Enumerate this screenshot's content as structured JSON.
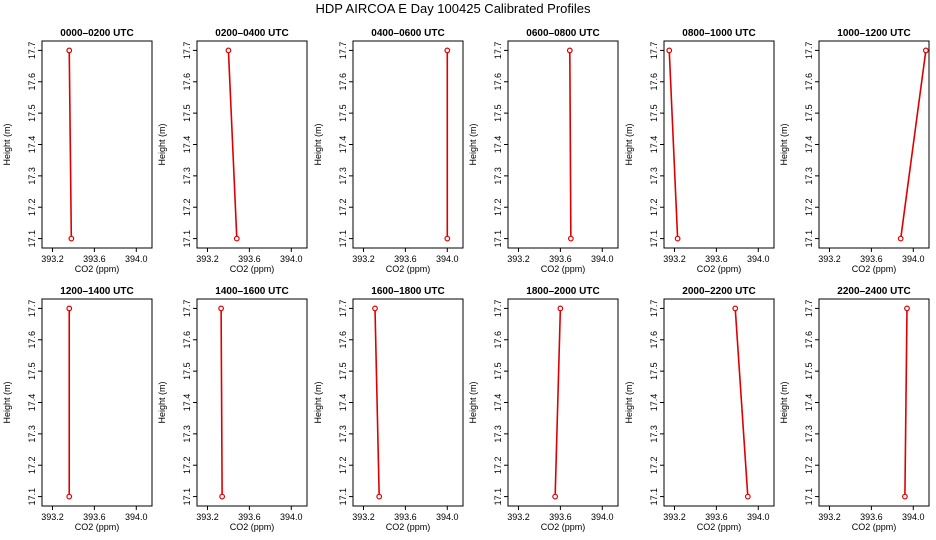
{
  "title": "HDP AIRCOA E  Day 100425  Calibrated Profiles",
  "chart_data": [
    {
      "type": "line",
      "title": "0000–0200 UTC",
      "xlabel": "CO2 (ppm)",
      "ylabel": "Height (m)",
      "xlim": [
        393.1,
        394.15
      ],
      "ylim": [
        17.07,
        17.73
      ],
      "xticks": [
        "393.2",
        "393.6",
        "394.0"
      ],
      "yticks": [
        "17.1",
        "17.2",
        "17.3",
        "17.4",
        "17.5",
        "17.6",
        "17.7"
      ],
      "color": "#dd0000",
      "points": [
        {
          "x": 393.36,
          "y": 17.7
        },
        {
          "x": 393.38,
          "y": 17.1
        }
      ]
    },
    {
      "type": "line",
      "title": "0200–0400 UTC",
      "xlabel": "CO2 (ppm)",
      "ylabel": "Height (m)",
      "xlim": [
        393.1,
        394.15
      ],
      "ylim": [
        17.07,
        17.73
      ],
      "xticks": [
        "393.2",
        "393.6",
        "394.0"
      ],
      "yticks": [
        "17.1",
        "17.2",
        "17.3",
        "17.4",
        "17.5",
        "17.6",
        "17.7"
      ],
      "color": "#dd0000",
      "points": [
        {
          "x": 393.4,
          "y": 17.7
        },
        {
          "x": 393.48,
          "y": 17.1
        }
      ]
    },
    {
      "type": "line",
      "title": "0400–0600 UTC",
      "xlabel": "CO2 (ppm)",
      "ylabel": "Height (m)",
      "xlim": [
        393.1,
        394.15
      ],
      "ylim": [
        17.07,
        17.73
      ],
      "xticks": [
        "393.2",
        "393.6",
        "394.0"
      ],
      "yticks": [
        "17.1",
        "17.2",
        "17.3",
        "17.4",
        "17.5",
        "17.6",
        "17.7"
      ],
      "color": "#dd0000",
      "points": [
        {
          "x": 394.0,
          "y": 17.7
        },
        {
          "x": 394.0,
          "y": 17.1
        }
      ]
    },
    {
      "type": "line",
      "title": "0600–0800 UTC",
      "xlabel": "CO2 (ppm)",
      "ylabel": "Height (m)",
      "xlim": [
        393.1,
        394.15
      ],
      "ylim": [
        17.07,
        17.73
      ],
      "xticks": [
        "393.2",
        "393.6",
        "394.0"
      ],
      "yticks": [
        "17.1",
        "17.2",
        "17.3",
        "17.4",
        "17.5",
        "17.6",
        "17.7"
      ],
      "color": "#dd0000",
      "points": [
        {
          "x": 393.69,
          "y": 17.7
        },
        {
          "x": 393.7,
          "y": 17.1
        }
      ]
    },
    {
      "type": "line",
      "title": "0800–1000 UTC",
      "xlabel": "CO2 (ppm)",
      "ylabel": "Height (m)",
      "xlim": [
        393.1,
        394.15
      ],
      "ylim": [
        17.07,
        17.73
      ],
      "xticks": [
        "393.2",
        "393.6",
        "394.0"
      ],
      "yticks": [
        "17.1",
        "17.2",
        "17.3",
        "17.4",
        "17.5",
        "17.6",
        "17.7"
      ],
      "color": "#dd0000",
      "points": [
        {
          "x": 393.15,
          "y": 17.7
        },
        {
          "x": 393.23,
          "y": 17.1
        }
      ]
    },
    {
      "type": "line",
      "title": "1000–1200 UTC",
      "xlabel": "CO2 (ppm)",
      "ylabel": "Height (m)",
      "xlim": [
        393.1,
        394.15
      ],
      "ylim": [
        17.07,
        17.73
      ],
      "xticks": [
        "393.2",
        "393.6",
        "394.0"
      ],
      "yticks": [
        "17.1",
        "17.2",
        "17.3",
        "17.4",
        "17.5",
        "17.6",
        "17.7"
      ],
      "color": "#dd0000",
      "points": [
        {
          "x": 394.12,
          "y": 17.7
        },
        {
          "x": 393.88,
          "y": 17.1
        }
      ]
    },
    {
      "type": "line",
      "title": "1200–1400 UTC",
      "xlabel": "CO2 (ppm)",
      "ylabel": "Height (m)",
      "xlim": [
        393.1,
        394.15
      ],
      "ylim": [
        17.07,
        17.73
      ],
      "xticks": [
        "393.2",
        "393.6",
        "394.0"
      ],
      "yticks": [
        "17.1",
        "17.2",
        "17.3",
        "17.4",
        "17.5",
        "17.6",
        "17.7"
      ],
      "color": "#dd0000",
      "points": [
        {
          "x": 393.36,
          "y": 17.7
        },
        {
          "x": 393.36,
          "y": 17.1
        }
      ]
    },
    {
      "type": "line",
      "title": "1400–1600 UTC",
      "xlabel": "CO2 (ppm)",
      "ylabel": "Height (m)",
      "xlim": [
        393.1,
        394.15
      ],
      "ylim": [
        17.07,
        17.73
      ],
      "xticks": [
        "393.2",
        "393.6",
        "394.0"
      ],
      "yticks": [
        "17.1",
        "17.2",
        "17.3",
        "17.4",
        "17.5",
        "17.6",
        "17.7"
      ],
      "color": "#dd0000",
      "points": [
        {
          "x": 393.33,
          "y": 17.7
        },
        {
          "x": 393.34,
          "y": 17.1
        }
      ]
    },
    {
      "type": "line",
      "title": "1600–1800 UTC",
      "xlabel": "CO2 (ppm)",
      "ylabel": "Height (m)",
      "xlim": [
        393.1,
        394.15
      ],
      "ylim": [
        17.07,
        17.73
      ],
      "xticks": [
        "393.2",
        "393.6",
        "394.0"
      ],
      "yticks": [
        "17.1",
        "17.2",
        "17.3",
        "17.4",
        "17.5",
        "17.6",
        "17.7"
      ],
      "color": "#dd0000",
      "points": [
        {
          "x": 393.31,
          "y": 17.7
        },
        {
          "x": 393.35,
          "y": 17.1
        }
      ]
    },
    {
      "type": "line",
      "title": "1800–2000 UTC",
      "xlabel": "CO2 (ppm)",
      "ylabel": "Height (m)",
      "xlim": [
        393.1,
        394.15
      ],
      "ylim": [
        17.07,
        17.73
      ],
      "xticks": [
        "393.2",
        "393.6",
        "394.0"
      ],
      "yticks": [
        "17.1",
        "17.2",
        "17.3",
        "17.4",
        "17.5",
        "17.6",
        "17.7"
      ],
      "color": "#dd0000",
      "points": [
        {
          "x": 393.6,
          "y": 17.7
        },
        {
          "x": 393.55,
          "y": 17.1
        }
      ]
    },
    {
      "type": "line",
      "title": "2000–2200 UTC",
      "xlabel": "CO2 (ppm)",
      "ylabel": "Height (m)",
      "xlim": [
        393.1,
        394.15
      ],
      "ylim": [
        17.07,
        17.73
      ],
      "xticks": [
        "393.2",
        "393.6",
        "394.0"
      ],
      "yticks": [
        "17.1",
        "17.2",
        "17.3",
        "17.4",
        "17.5",
        "17.6",
        "17.7"
      ],
      "color": "#dd0000",
      "points": [
        {
          "x": 393.78,
          "y": 17.7
        },
        {
          "x": 393.9,
          "y": 17.1
        }
      ]
    },
    {
      "type": "line",
      "title": "2200–2400 UTC",
      "xlabel": "CO2 (ppm)",
      "ylabel": "Height (m)",
      "xlim": [
        393.1,
        394.15
      ],
      "ylim": [
        17.07,
        17.73
      ],
      "xticks": [
        "393.2",
        "393.6",
        "394.0"
      ],
      "yticks": [
        "17.1",
        "17.2",
        "17.3",
        "17.4",
        "17.5",
        "17.6",
        "17.7"
      ],
      "color": "#dd0000",
      "points": [
        {
          "x": 393.94,
          "y": 17.7
        },
        {
          "x": 393.92,
          "y": 17.1
        }
      ]
    }
  ]
}
